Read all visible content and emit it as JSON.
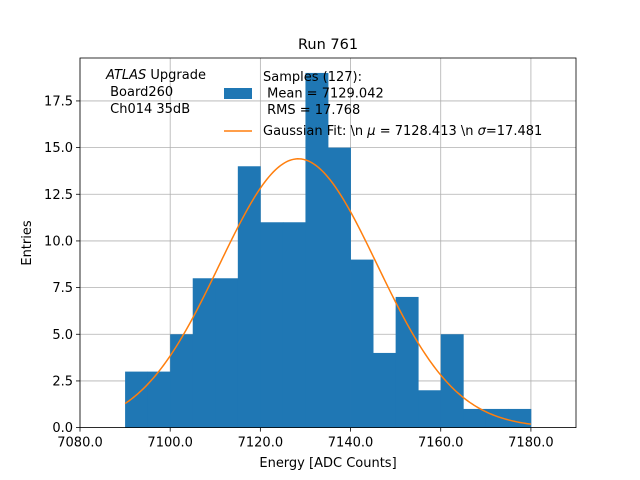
{
  "chart_data": {
    "type": "bar",
    "title": "Run 761",
    "xlabel": "Energy [ADC Counts]",
    "ylabel": "Entries",
    "xlim": [
      7080,
      7190
    ],
    "ylim": [
      0,
      19.8
    ],
    "grid": true,
    "xticks": [
      7080,
      7100,
      7120,
      7140,
      7160,
      7180
    ],
    "xtick_labels": [
      "7080.0",
      "7100.0",
      "7120.0",
      "7140.0",
      "7160.0",
      "7180.0"
    ],
    "yticks": [
      0,
      2.5,
      5,
      7.5,
      10,
      12.5,
      15,
      17.5
    ],
    "ytick_labels": [
      "0.0",
      "2.5",
      "5.0",
      "7.5",
      "10.0",
      "12.5",
      "15.0",
      "17.5"
    ],
    "histogram": {
      "name": "Samples (127):\n Mean = 7129.042\n RMS = 17.768",
      "color": "#1f77b4",
      "bin_edges": [
        7090,
        7095,
        7100,
        7105,
        7110,
        7115,
        7120,
        7125,
        7130,
        7135,
        7140,
        7145,
        7150,
        7155,
        7160,
        7165,
        7170,
        7175,
        7180
      ],
      "counts": [
        3,
        3,
        5,
        8,
        8,
        14,
        11,
        11,
        19,
        15,
        9,
        4,
        7,
        2,
        5,
        1,
        1,
        1
      ]
    },
    "fit": {
      "name": "Gaussian Fit: \\n $\\mu$ = 7128.413 \\n $\\sigma$=17.481",
      "color": "#ff7f0e",
      "mu": 7128.413,
      "sigma": 17.481,
      "amplitude": 14.4,
      "x_range": [
        7090,
        7180
      ]
    },
    "annotation": {
      "line1_italic": "ATLAS",
      "line1_rest": " Upgrade",
      "line2": " Board260",
      "line3": " Ch014 35dB"
    },
    "legend_placement": "top-center"
  }
}
